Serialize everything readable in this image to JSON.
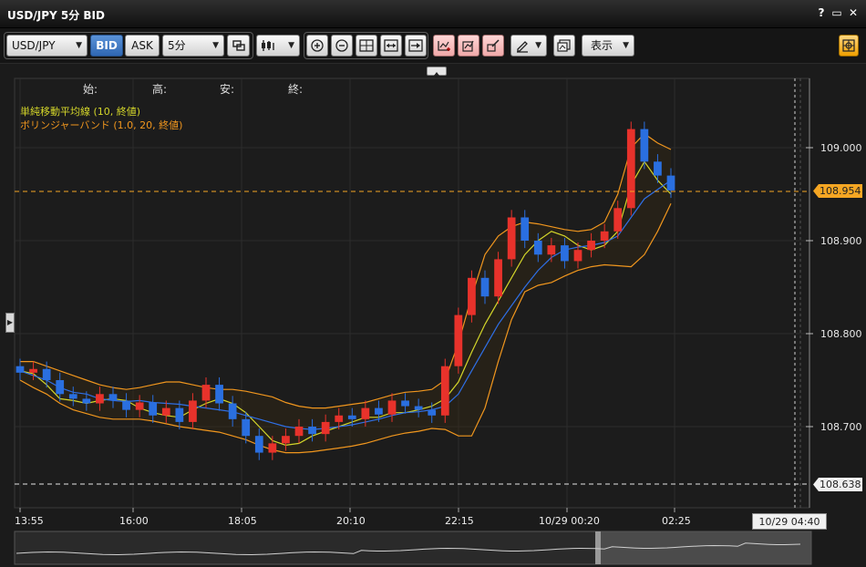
{
  "window": {
    "title": "USD/JPY 5分 BID",
    "help": "?",
    "minimize": "▭",
    "close": "✕"
  },
  "toolbar": {
    "pair": "USD/JPY",
    "bid": "BID",
    "ask": "ASK",
    "interval": "5分",
    "display": "表示"
  },
  "ohlc": {
    "open": "始:",
    "high": "高:",
    "low": "安:",
    "close": "終:"
  },
  "legend": {
    "sma": "単純移動平均線 (10, 終値)",
    "bb": "ボリンジャーバンド (1.0, 20, 終値)"
  },
  "colors": {
    "background": "#1b1b1b",
    "up_candle": "#e8322b",
    "down_candle": "#2a6fe0",
    "sma": "#d4d62a",
    "bb_mid": "#2f6fe6",
    "bb_band": "#f0961e",
    "current_price": "#f5a623"
  },
  "chart_data": {
    "type": "line",
    "symbol": "USD/JPY",
    "timeframe": "5分",
    "y_ticks": [
      "109.000",
      "108.900",
      "108.800",
      "108.700"
    ],
    "y_range": [
      108.62,
      109.08
    ],
    "x_ticks": [
      "13:55",
      "16:00",
      "18:05",
      "20:10",
      "22:15",
      "10/29 00:20",
      "02:25"
    ],
    "current_price": "108.954",
    "low_marker": "108.638",
    "hover_time": "10/29 04:40",
    "series": [
      {
        "name": "単純移動平均線 (10, 終値)",
        "color": "#d4d62a",
        "values": [
          108.76,
          108.757,
          108.745,
          108.73,
          108.728,
          108.725,
          108.728,
          108.73,
          108.728,
          108.72,
          108.715,
          108.712,
          108.71,
          108.718,
          108.725,
          108.73,
          108.725,
          108.715,
          108.7,
          108.685,
          108.68,
          108.682,
          108.69,
          108.695,
          108.7,
          108.705,
          108.71,
          108.71,
          108.715,
          108.715,
          108.718,
          108.722,
          108.73,
          108.748,
          108.78,
          108.81,
          108.835,
          108.86,
          108.885,
          108.9,
          108.91,
          108.905,
          108.895,
          108.89,
          108.895,
          108.91,
          108.96,
          108.985,
          108.965,
          108.95
        ]
      },
      {
        "name": "BB mid",
        "color": "#2f6fe6",
        "values": [
          108.76,
          108.755,
          108.75,
          108.742,
          108.737,
          108.735,
          108.73,
          108.728,
          108.727,
          108.728,
          108.726,
          108.725,
          108.724,
          108.722,
          108.72,
          108.718,
          108.716,
          108.712,
          108.708,
          108.704,
          108.7,
          108.698,
          108.697,
          108.698,
          108.7,
          108.702,
          108.705,
          108.708,
          108.712,
          108.715,
          108.716,
          108.718,
          108.722,
          108.735,
          108.76,
          108.785,
          108.81,
          108.83,
          108.85,
          108.868,
          108.882,
          108.89,
          108.893,
          108.895,
          108.898,
          108.905,
          108.925,
          108.945,
          108.955,
          108.965
        ]
      },
      {
        "name": "BB upper",
        "color": "#f0961e",
        "values": [
          108.77,
          108.77,
          108.765,
          108.76,
          108.755,
          108.75,
          108.745,
          108.742,
          108.74,
          108.742,
          108.745,
          108.748,
          108.748,
          108.745,
          108.742,
          108.74,
          108.74,
          108.738,
          108.735,
          108.732,
          108.726,
          108.722,
          108.72,
          108.72,
          108.722,
          108.724,
          108.726,
          108.73,
          108.734,
          108.737,
          108.738,
          108.74,
          108.75,
          108.79,
          108.84,
          108.885,
          108.905,
          108.915,
          108.92,
          108.918,
          108.915,
          108.912,
          108.91,
          108.912,
          108.92,
          108.95,
          109.0,
          109.015,
          109.005,
          108.998
        ]
      },
      {
        "name": "BB lower",
        "color": "#f0961e",
        "values": [
          108.75,
          108.742,
          108.735,
          108.725,
          108.718,
          108.714,
          108.71,
          108.708,
          108.708,
          108.708,
          108.706,
          108.703,
          108.7,
          108.698,
          108.696,
          108.694,
          108.69,
          108.686,
          108.68,
          108.675,
          108.672,
          108.672,
          108.673,
          108.675,
          108.677,
          108.679,
          108.682,
          108.686,
          108.69,
          108.693,
          108.695,
          108.698,
          108.697,
          108.69,
          108.69,
          108.72,
          108.77,
          108.815,
          108.845,
          108.852,
          108.855,
          108.862,
          108.868,
          108.872,
          108.874,
          108.873,
          108.872,
          108.885,
          108.91,
          108.94
        ]
      }
    ],
    "candles": [
      [
        108.765,
        108.758
      ],
      [
        108.758,
        108.762
      ],
      [
        108.762,
        108.75
      ],
      [
        108.75,
        108.735
      ],
      [
        108.735,
        108.73
      ],
      [
        108.73,
        108.725
      ],
      [
        108.725,
        108.735
      ],
      [
        108.735,
        108.728
      ],
      [
        108.728,
        108.718
      ],
      [
        108.718,
        108.726
      ],
      [
        108.726,
        108.712
      ],
      [
        108.712,
        108.72
      ],
      [
        108.72,
        108.705
      ],
      [
        108.705,
        108.728
      ],
      [
        108.728,
        108.745
      ],
      [
        108.745,
        108.725
      ],
      [
        108.725,
        108.708
      ],
      [
        108.708,
        108.69
      ],
      [
        108.69,
        108.672
      ],
      [
        108.672,
        108.682
      ],
      [
        108.682,
        108.69
      ],
      [
        108.69,
        108.7
      ],
      [
        108.7,
        108.692
      ],
      [
        108.692,
        108.705
      ],
      [
        108.705,
        108.712
      ],
      [
        108.712,
        108.708
      ],
      [
        108.708,
        108.72
      ],
      [
        108.72,
        108.713
      ],
      [
        108.713,
        108.728
      ],
      [
        108.728,
        108.722
      ],
      [
        108.722,
        108.718
      ],
      [
        108.718,
        108.712
      ],
      [
        108.712,
        108.765
      ],
      [
        108.765,
        108.82
      ],
      [
        108.82,
        108.86
      ],
      [
        108.86,
        108.84
      ],
      [
        108.84,
        108.88
      ],
      [
        108.88,
        108.925
      ],
      [
        108.925,
        108.9
      ],
      [
        108.9,
        108.885
      ],
      [
        108.885,
        108.895
      ],
      [
        108.895,
        108.878
      ],
      [
        108.878,
        108.89
      ],
      [
        108.89,
        108.9
      ],
      [
        108.9,
        108.91
      ],
      [
        108.91,
        108.935
      ],
      [
        108.935,
        109.02
      ],
      [
        109.02,
        108.985
      ],
      [
        108.985,
        108.97
      ],
      [
        108.97,
        108.954
      ]
    ]
  }
}
